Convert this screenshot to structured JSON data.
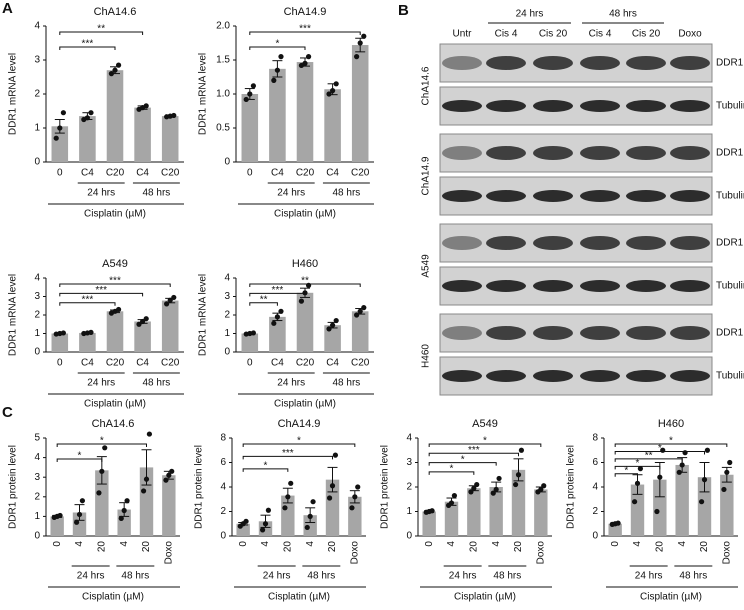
{
  "panel_labels": [
    "A",
    "B",
    "C"
  ],
  "blot": {
    "groups": [
      "24 hrs",
      "48 hrs"
    ],
    "lanes": [
      "Untr",
      "Cis 4",
      "Cis 20",
      "Cis 4",
      "Cis 20",
      "Doxo"
    ],
    "cell_lines": [
      "ChA14.6",
      "ChA14.9",
      "A549",
      "H460"
    ],
    "proteins": [
      "DDR1",
      "Tubulin"
    ]
  },
  "chart_data": [
    {
      "type": "bar",
      "title": "ChA14.6",
      "ylabel": "DDR1 mRNA level",
      "xlabel": "Cisplatin (µM)",
      "color": "#a6a6a6",
      "categories": [
        "0",
        "C4",
        "C20",
        "C4",
        "C20"
      ],
      "values": [
        1.05,
        1.35,
        2.7,
        1.6,
        1.35
      ],
      "errors": [
        0.2,
        0.1,
        0.1,
        0.05,
        0.03
      ],
      "points": [
        [
          0.7,
          1.0,
          1.45
        ],
        [
          1.25,
          1.3,
          1.45
        ],
        [
          2.6,
          2.7,
          2.85
        ],
        [
          1.55,
          1.6,
          1.65
        ],
        [
          1.33,
          1.35,
          1.37
        ]
      ],
      "ylim": [
        0,
        4
      ],
      "yticks": [
        0,
        1,
        2,
        3,
        4
      ],
      "groups": [
        {
          "label": "24 hrs",
          "from": 1,
          "to": 2
        },
        {
          "label": "48 hrs",
          "from": 3,
          "to": 4
        }
      ],
      "brackets": [
        {
          "from": 0,
          "to": 2,
          "label": "***"
        },
        {
          "from": 0,
          "to": 3,
          "label": "**"
        }
      ]
    },
    {
      "type": "bar",
      "title": "ChA14.9",
      "ylabel": "DDR1 mRNA level",
      "xlabel": "Cisplatin (µM)",
      "color": "#a6a6a6",
      "categories": [
        "0",
        "C4",
        "C20",
        "C4",
        "C20"
      ],
      "values": [
        1.0,
        1.37,
        1.47,
        1.07,
        1.72
      ],
      "errors": [
        0.08,
        0.12,
        0.06,
        0.08,
        0.1
      ],
      "points": [
        [
          0.92,
          1.0,
          1.12
        ],
        [
          1.2,
          1.35,
          1.55
        ],
        [
          1.42,
          1.45,
          1.55
        ],
        [
          1.0,
          1.05,
          1.15
        ],
        [
          1.55,
          1.75,
          1.85
        ]
      ],
      "ylim": [
        0,
        2
      ],
      "yticks": [
        0,
        0.5,
        {
          "value": 1,
          "label": "1.0"
        },
        1.5,
        {
          "value": 2,
          "label": "2.0"
        }
      ],
      "groups": [
        {
          "label": "24 hrs",
          "from": 1,
          "to": 2
        },
        {
          "label": "48 hrs",
          "from": 3,
          "to": 4
        }
      ],
      "brackets": [
        {
          "from": 0,
          "to": 2,
          "label": "*"
        },
        {
          "from": 0,
          "to": 4,
          "label": "***"
        }
      ]
    },
    {
      "type": "bar",
      "title": "A549",
      "ylabel": "DDR1 mRNA level",
      "xlabel": "Cisplatin (µM)",
      "color": "#a6a6a6",
      "categories": [
        "0",
        "C4",
        "C20",
        "C4",
        "C20"
      ],
      "values": [
        1.0,
        1.03,
        2.2,
        1.65,
        2.78
      ],
      "errors": [
        0.03,
        0.03,
        0.07,
        0.1,
        0.12
      ],
      "points": [
        [
          0.97,
          1.0,
          1.03
        ],
        [
          1.0,
          1.03,
          1.06
        ],
        [
          2.1,
          2.2,
          2.3
        ],
        [
          1.5,
          1.65,
          1.8
        ],
        [
          2.6,
          2.8,
          2.95
        ]
      ],
      "ylim": [
        0,
        4
      ],
      "yticks": [
        0,
        1,
        2,
        3,
        4
      ],
      "groups": [
        {
          "label": "24 hrs",
          "from": 1,
          "to": 2
        },
        {
          "label": "48 hrs",
          "from": 3,
          "to": 4
        }
      ],
      "brackets": [
        {
          "from": 0,
          "to": 2,
          "label": "***"
        },
        {
          "from": 0,
          "to": 3,
          "label": "***"
        },
        {
          "from": 0,
          "to": 4,
          "label": "***"
        }
      ]
    },
    {
      "type": "bar",
      "title": "H460",
      "ylabel": "DDR1 mRNA level",
      "xlabel": "Cisplatin (µM)",
      "color": "#a6a6a6",
      "categories": [
        "0",
        "C4",
        "C20",
        "C4",
        "C20"
      ],
      "values": [
        1.0,
        1.9,
        3.2,
        1.45,
        2.2
      ],
      "errors": [
        0.03,
        0.2,
        0.25,
        0.15,
        0.15
      ],
      "points": [
        [
          0.97,
          1.0,
          1.03
        ],
        [
          1.55,
          1.9,
          2.2
        ],
        [
          2.75,
          3.2,
          3.6
        ],
        [
          1.25,
          1.45,
          1.7
        ],
        [
          2.0,
          2.2,
          2.4
        ]
      ],
      "ylim": [
        0,
        4
      ],
      "yticks": [
        0,
        1,
        2,
        3,
        4
      ],
      "groups": [
        {
          "label": "24 hrs",
          "from": 1,
          "to": 2
        },
        {
          "label": "48 hrs",
          "from": 3,
          "to": 4
        }
      ],
      "brackets": [
        {
          "from": 0,
          "to": 1,
          "label": "**"
        },
        {
          "from": 0,
          "to": 2,
          "label": "***"
        },
        {
          "from": 0,
          "to": 4,
          "label": "**"
        }
      ]
    },
    {
      "type": "bar",
      "title": "ChA14.6",
      "ylabel": "DDR1 protein level",
      "xlabel": "Cisplatin (µM)",
      "color": "#a6a6a6",
      "categories": [
        "0",
        "4",
        "20",
        "4",
        "20",
        "Doxo"
      ],
      "values": [
        1.0,
        1.2,
        3.35,
        1.35,
        3.5,
        3.1
      ],
      "errors": [
        0.05,
        0.4,
        0.7,
        0.35,
        0.9,
        0.2
      ],
      "points": [
        [
          0.95,
          1.0,
          1.05
        ],
        [
          0.7,
          1.1,
          1.8
        ],
        [
          2.2,
          3.3,
          4.5
        ],
        [
          0.9,
          1.3,
          1.8
        ],
        [
          2.3,
          2.9,
          5.2
        ],
        [
          2.85,
          3.1,
          3.3
        ]
      ],
      "ylim": [
        0,
        5
      ],
      "yticks": [
        0,
        1,
        2,
        3,
        4,
        5
      ],
      "groups": [
        {
          "label": "24 hrs",
          "from": 1,
          "to": 2
        },
        {
          "label": "48 hrs",
          "from": 3,
          "to": 4
        }
      ],
      "brackets": [
        {
          "from": 0,
          "to": 2,
          "label": "*"
        },
        {
          "from": 0,
          "to": 4,
          "label": "*"
        }
      ]
    },
    {
      "type": "bar",
      "title": "ChA14.9",
      "ylabel": "DDR1 protein level",
      "xlabel": "Cisplatin (µM)",
      "color": "#a6a6a6",
      "categories": [
        "0",
        "4",
        "20",
        "4",
        "20",
        "Doxo"
      ],
      "values": [
        1.0,
        1.2,
        3.3,
        1.7,
        4.6,
        3.2
      ],
      "errors": [
        0.1,
        0.5,
        0.6,
        0.6,
        1.0,
        0.5
      ],
      "points": [
        [
          0.8,
          1.0,
          1.2
        ],
        [
          0.5,
          1.0,
          2.1
        ],
        [
          2.3,
          3.2,
          4.3
        ],
        [
          0.7,
          1.6,
          2.8
        ],
        [
          3.1,
          4.1,
          6.6
        ],
        [
          2.3,
          3.2,
          4.0
        ]
      ],
      "ylim": [
        0,
        8
      ],
      "yticks": [
        0,
        2,
        4,
        6,
        8
      ],
      "groups": [
        {
          "label": "24 hrs",
          "from": 1,
          "to": 2
        },
        {
          "label": "48 hrs",
          "from": 3,
          "to": 4
        }
      ],
      "brackets": [
        {
          "from": 0,
          "to": 2,
          "label": "*"
        },
        {
          "from": 0,
          "to": 4,
          "label": "***"
        },
        {
          "from": 0,
          "to": 5,
          "label": "*"
        }
      ]
    },
    {
      "type": "bar",
      "title": "A549",
      "ylabel": "DDR1 protein level",
      "xlabel": "Cisplatin (µM)",
      "color": "#a6a6a6",
      "categories": [
        "0",
        "4",
        "20",
        "4",
        "20",
        "Doxo"
      ],
      "values": [
        1.0,
        1.4,
        1.95,
        2.0,
        2.7,
        1.9
      ],
      "errors": [
        0.03,
        0.15,
        0.1,
        0.2,
        0.45,
        0.1
      ],
      "points": [
        [
          0.97,
          1.0,
          1.03
        ],
        [
          1.25,
          1.35,
          1.65
        ],
        [
          1.8,
          1.95,
          2.1
        ],
        [
          1.75,
          1.9,
          2.35
        ],
        [
          2.1,
          2.5,
          3.5
        ],
        [
          1.8,
          1.9,
          2.05
        ]
      ],
      "ylim": [
        0,
        4
      ],
      "yticks": [
        0,
        1,
        2,
        3,
        4
      ],
      "groups": [
        {
          "label": "24 hrs",
          "from": 1,
          "to": 2
        },
        {
          "label": "48 hrs",
          "from": 3,
          "to": 4
        }
      ],
      "brackets": [
        {
          "from": 0,
          "to": 2,
          "label": "*"
        },
        {
          "from": 0,
          "to": 3,
          "label": "*"
        },
        {
          "from": 0,
          "to": 4,
          "label": "***"
        },
        {
          "from": 0,
          "to": 5,
          "label": "*"
        }
      ]
    },
    {
      "type": "bar",
      "title": "H460",
      "ylabel": "DDR1 protein level",
      "xlabel": "Cisplatin (µM)",
      "color": "#a6a6a6",
      "categories": [
        "0",
        "4",
        "20",
        "4",
        "20",
        "Doxo"
      ],
      "values": [
        1.0,
        4.2,
        4.6,
        5.8,
        4.8,
        5.0
      ],
      "errors": [
        0.05,
        0.8,
        1.4,
        0.6,
        1.2,
        0.6
      ],
      "points": [
        [
          0.95,
          1.0,
          1.05
        ],
        [
          2.8,
          4.3,
          5.5
        ],
        [
          2.0,
          4.8,
          7.0
        ],
        [
          5.2,
          5.8,
          6.8
        ],
        [
          2.8,
          4.6,
          7.0
        ],
        [
          3.8,
          5.2,
          6.0
        ]
      ],
      "ylim": [
        0,
        8
      ],
      "yticks": [
        0,
        2,
        4,
        6,
        8
      ],
      "groups": [
        {
          "label": "24 hrs",
          "from": 1,
          "to": 2
        },
        {
          "label": "48 hrs",
          "from": 3,
          "to": 4
        }
      ],
      "brackets": [
        {
          "from": 0,
          "to": 1,
          "label": "*"
        },
        {
          "from": 0,
          "to": 2,
          "label": "*"
        },
        {
          "from": 0,
          "to": 3,
          "label": "**"
        },
        {
          "from": 0,
          "to": 4,
          "label": "*"
        },
        {
          "from": 0,
          "to": 5,
          "label": "*"
        }
      ]
    }
  ]
}
